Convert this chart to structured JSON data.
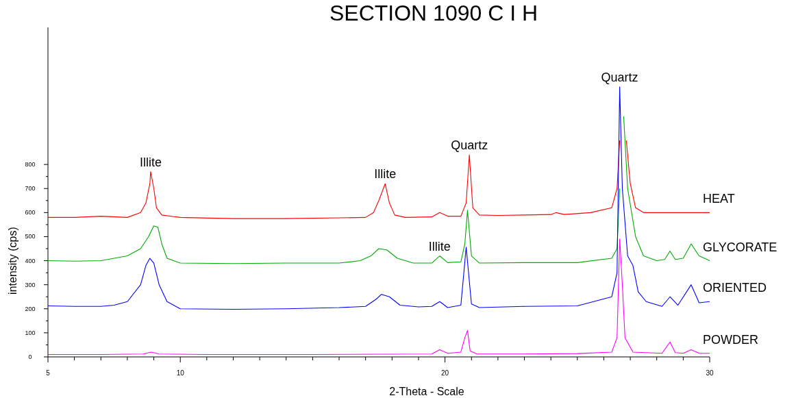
{
  "chart_data": {
    "type": "line",
    "title": "SECTION 1090 C I H",
    "xlabel": "2-Theta - Scale",
    "ylabel": "intensity (cps)",
    "xlim": [
      5,
      30
    ],
    "xticks": [
      5,
      {
        "value": 6,
        "label": null
      },
      {
        "value": 7,
        "label": null
      },
      {
        "value": 8,
        "label": null
      },
      {
        "value": 9,
        "label": null
      },
      10,
      {
        "value": 11,
        "label": null
      },
      {
        "value": 12,
        "label": null
      },
      {
        "value": 13,
        "label": null
      },
      {
        "value": 14,
        "label": null
      },
      {
        "value": 15,
        "label": null
      },
      {
        "value": 16,
        "label": null
      },
      {
        "value": 17,
        "label": null
      },
      {
        "value": 18,
        "label": null
      },
      {
        "value": 19,
        "label": null
      },
      20,
      {
        "value": 21,
        "label": null
      },
      {
        "value": 22,
        "label": null
      },
      {
        "value": 23,
        "label": null
      },
      {
        "value": 24,
        "label": null
      },
      {
        "value": 25,
        "label": null
      },
      {
        "value": 26,
        "label": null
      },
      {
        "value": 27,
        "label": null
      },
      {
        "value": 28,
        "label": null
      },
      {
        "value": 29,
        "label": null
      },
      30
    ],
    "ylim": [
      0,
      1370
    ],
    "yticks": [
      0,
      {
        "value": 50,
        "label": null
      },
      100,
      {
        "value": 150,
        "label": null
      },
      200,
      {
        "value": 250,
        "label": null
      },
      300,
      {
        "value": 350,
        "label": null
      },
      400,
      {
        "value": 450,
        "label": null
      },
      500,
      {
        "value": 550,
        "label": null
      },
      600,
      {
        "value": 650,
        "label": null
      },
      700,
      {
        "value": 750,
        "label": null
      },
      800
    ],
    "grid": false,
    "legend": false,
    "marker": "none",
    "line_style": "solid",
    "series": [
      {
        "name": "HEAT",
        "color": "#ff0000",
        "x": [
          5,
          6,
          7,
          8,
          8.5,
          8.7,
          8.85,
          8.88,
          9.0,
          9.1,
          9.3,
          10,
          12,
          14,
          16,
          17,
          17.3,
          17.5,
          17.74,
          17.9,
          18.1,
          18.5,
          19.5,
          19.8,
          20.1,
          20.6,
          20.8,
          20.92,
          21.05,
          21.3,
          22,
          23,
          24,
          24.2,
          24.5,
          25.5,
          26.3,
          26.5,
          26.6,
          26.65,
          26.75,
          26.85,
          27.0,
          27.2,
          27.5,
          28.5,
          30
        ],
        "values": [
          580,
          580,
          585,
          580,
          600,
          640,
          720,
          770,
          700,
          620,
          590,
          580,
          575,
          575,
          578,
          580,
          600,
          650,
          720,
          640,
          590,
          580,
          582,
          600,
          585,
          585,
          640,
          840,
          620,
          590,
          588,
          590,
          592,
          600,
          592,
          600,
          620,
          700,
          900,
          null,
          null,
          900,
          720,
          620,
          600,
          600,
          600
        ]
      },
      {
        "name": "GLYCORATE",
        "color": "#00aa00",
        "x": [
          5,
          6,
          7,
          8,
          8.5,
          8.8,
          9.0,
          9.15,
          9.3,
          9.5,
          10,
          12,
          14,
          16,
          16.8,
          17.2,
          17.5,
          17.8,
          18.2,
          18.8,
          19.5,
          19.8,
          20.1,
          20.6,
          20.75,
          20.85,
          21.0,
          21.3,
          23,
          25,
          26.3,
          26.5,
          26.6,
          26.65,
          26.75,
          26.9,
          27.2,
          27.5,
          28.0,
          28.3,
          28.5,
          28.7,
          29.0,
          29.3,
          29.6,
          30
        ],
        "values": [
          400,
          398,
          400,
          420,
          450,
          500,
          545,
          540,
          470,
          410,
          390,
          388,
          390,
          390,
          400,
          420,
          450,
          445,
          410,
          390,
          390,
          420,
          392,
          395,
          470,
          610,
          420,
          390,
          392,
          392,
          410,
          450,
          700,
          null,
          1000,
          700,
          500,
          420,
          400,
          405,
          440,
          405,
          410,
          470,
          420,
          400
        ]
      },
      {
        "name": "ORIENTED",
        "color": "#0000ff",
        "x": [
          5,
          6,
          7,
          7.5,
          8.0,
          8.5,
          8.7,
          8.85,
          9.0,
          9.2,
          9.5,
          10,
          12,
          14,
          16,
          17.0,
          17.4,
          17.6,
          17.9,
          18.3,
          19,
          19.5,
          19.8,
          20.1,
          20.6,
          20.8,
          21.0,
          21.3,
          23,
          25,
          26.3,
          26.5,
          26.6,
          26.7,
          26.9,
          27.1,
          27.3,
          27.6,
          28.2,
          28.5,
          28.8,
          29.3,
          29.6,
          30
        ],
        "values": [
          212,
          210,
          210,
          215,
          230,
          300,
          380,
          410,
          390,
          300,
          230,
          200,
          198,
          200,
          205,
          210,
          240,
          260,
          250,
          215,
          208,
          210,
          230,
          205,
          215,
          456,
          220,
          205,
          210,
          212,
          250,
          350,
          1123,
          700,
          420,
          380,
          270,
          230,
          210,
          250,
          215,
          300,
          225,
          230
        ]
      },
      {
        "name": "POWDER",
        "color": "#ff00ff",
        "x": [
          5,
          7,
          8.6,
          8.9,
          9.2,
          11,
          15,
          19.5,
          19.8,
          20.1,
          20.6,
          20.75,
          20.85,
          20.95,
          21.2,
          23,
          25,
          26.3,
          26.5,
          26.6,
          26.7,
          26.8,
          27.1,
          28.2,
          28.5,
          28.7,
          29.0,
          29.3,
          29.6,
          30
        ],
        "values": [
          10,
          10,
          12,
          20,
          12,
          10,
          10,
          12,
          30,
          15,
          20,
          80,
          110,
          25,
          12,
          12,
          14,
          20,
          80,
          490,
          300,
          80,
          20,
          15,
          62,
          18,
          15,
          30,
          15,
          15
        ]
      }
    ],
    "annotations": [
      {
        "text": "Illite",
        "x": 8.88,
        "y": 770
      },
      {
        "text": "Illite",
        "x": 17.74,
        "y": 720
      },
      {
        "text": "Quartz",
        "x": 20.92,
        "y": 840
      },
      {
        "text": "Illite",
        "x": 19.8,
        "y": 420
      },
      {
        "text": "Quartz",
        "x": 26.6,
        "y": 1123
      }
    ]
  }
}
